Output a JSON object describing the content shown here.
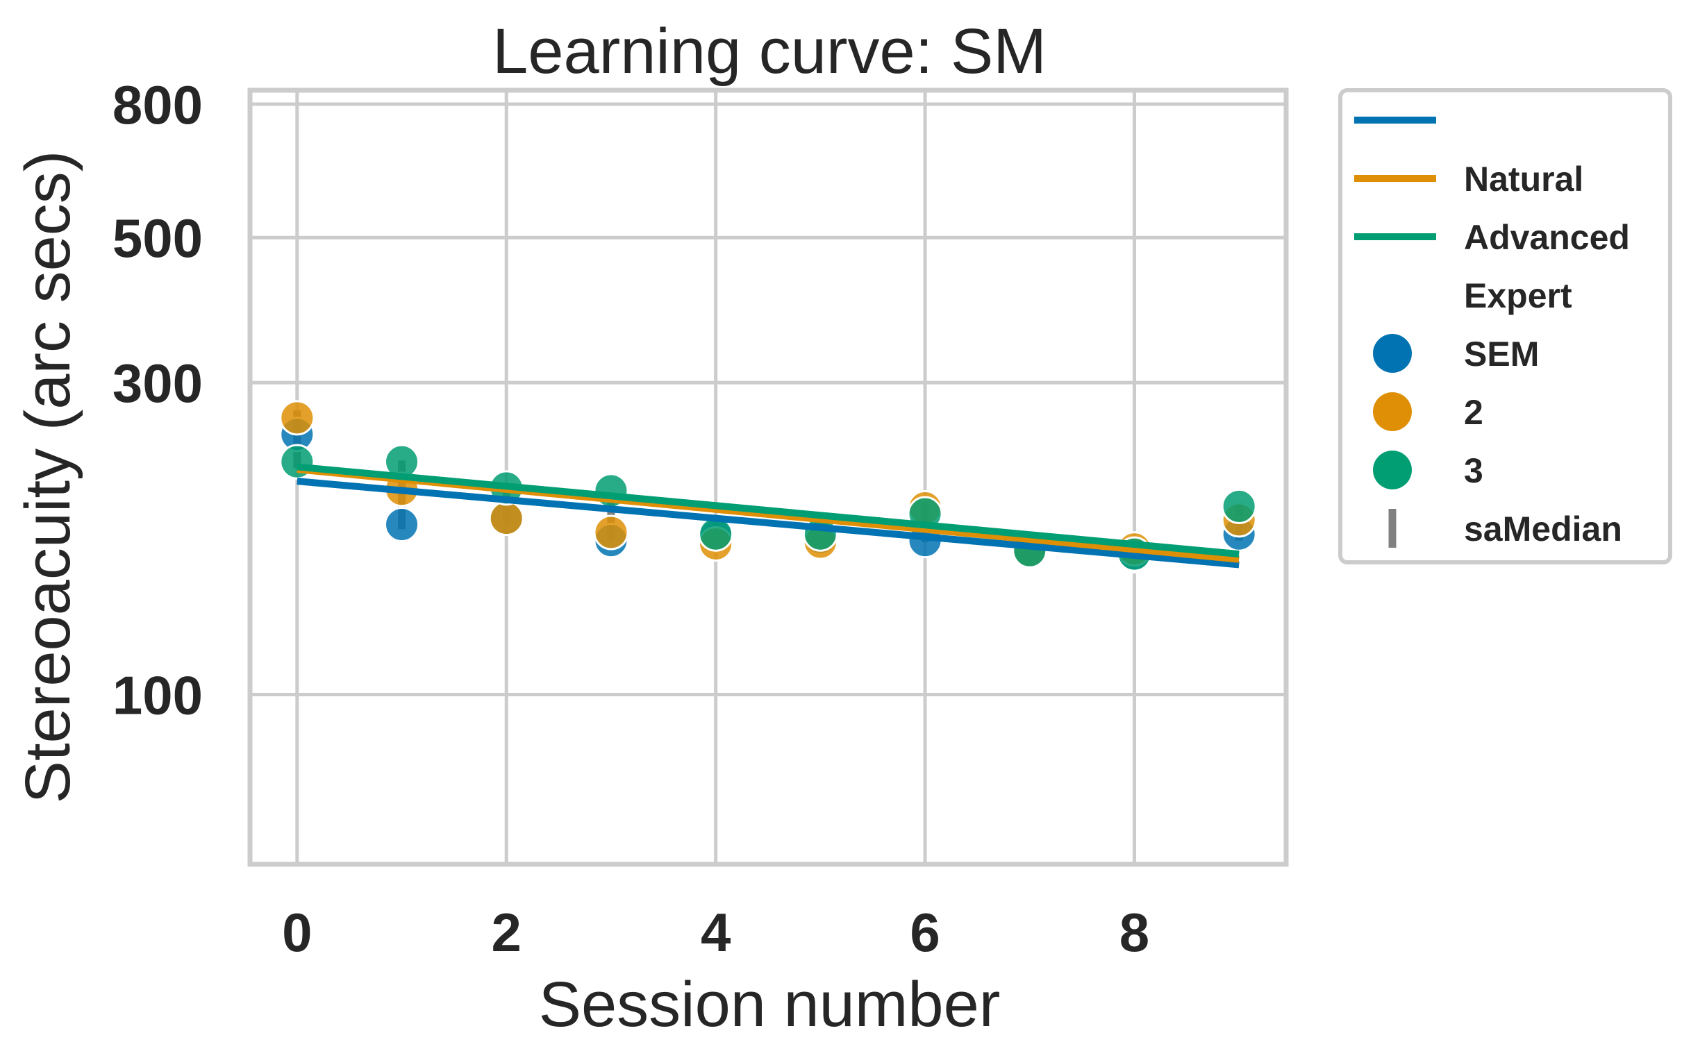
{
  "chart_data": {
    "type": "scatter",
    "title": "Learning curve: SM",
    "xlabel": "Session number",
    "ylabel": "Stereoacuity (arc secs)",
    "x_ticks": [
      0,
      2,
      4,
      6,
      8
    ],
    "y_ticks": [
      100,
      300,
      500,
      800
    ],
    "y_scale": "log",
    "xlim": [
      -0.45,
      9.45
    ],
    "ylim": [
      55,
      840
    ],
    "grid": true,
    "legend_position": "outside-right",
    "colors": {
      "SEM": "#0173b2",
      "2": "#de8f05",
      "3": "#029e73",
      "saMedian": "#808080",
      "grid": "#cccccc",
      "text": "#262626"
    },
    "legend": [
      {
        "kind": "line",
        "label": "",
        "color_key": "SEM"
      },
      {
        "kind": "line",
        "label": "Natural",
        "color_key": "2"
      },
      {
        "kind": "line",
        "label": "Advanced",
        "color_key": "3"
      },
      {
        "kind": "header",
        "label": "Expert"
      },
      {
        "kind": "marker",
        "label": "SEM",
        "color_key": "SEM"
      },
      {
        "kind": "marker",
        "label": "2",
        "color_key": "2"
      },
      {
        "kind": "marker",
        "label": "3",
        "color_key": "3"
      },
      {
        "kind": "median",
        "label": "saMedian",
        "color_key": "saMedian"
      }
    ],
    "series": [
      {
        "key": "SEM",
        "points": [
          {
            "x": 0,
            "y": 250
          },
          {
            "x": 1,
            "y": 182
          },
          {
            "x": 2,
            "y": 186
          },
          {
            "x": 3,
            "y": 172
          },
          {
            "x": 4,
            "y": 175
          },
          {
            "x": 5,
            "y": 174
          },
          {
            "x": 6,
            "y": 172
          },
          {
            "x": 7,
            "y": 165
          },
          {
            "x": 8,
            "y": 163
          },
          {
            "x": 9,
            "y": 176
          }
        ],
        "fit": [
          {
            "x": 0,
            "y": 212
          },
          {
            "x": 9,
            "y": 158
          }
        ]
      },
      {
        "key": "2",
        "points": [
          {
            "x": 0,
            "y": 265
          },
          {
            "x": 1,
            "y": 206
          },
          {
            "x": 2,
            "y": 186
          },
          {
            "x": 3,
            "y": 177
          },
          {
            "x": 4,
            "y": 170
          },
          {
            "x": 5,
            "y": 171
          },
          {
            "x": 6,
            "y": 193
          },
          {
            "x": 7,
            "y": 165
          },
          {
            "x": 8,
            "y": 167
          },
          {
            "x": 9,
            "y": 185
          }
        ],
        "fit": [
          {
            "x": 0,
            "y": 221
          },
          {
            "x": 9,
            "y": 161
          }
        ]
      },
      {
        "key": "3",
        "points": [
          {
            "x": 0,
            "y": 227
          },
          {
            "x": 1,
            "y": 227
          },
          {
            "x": 2,
            "y": 207
          },
          {
            "x": 3,
            "y": 205
          },
          {
            "x": 4,
            "y": 176
          },
          {
            "x": 5,
            "y": 176
          },
          {
            "x": 6,
            "y": 189
          },
          {
            "x": 7,
            "y": 166
          },
          {
            "x": 8,
            "y": 164
          },
          {
            "x": 9,
            "y": 194
          }
        ],
        "fit": [
          {
            "x": 0,
            "y": 223
          },
          {
            "x": 9,
            "y": 164
          }
        ]
      }
    ],
    "medians": [
      {
        "x": 0,
        "y_low": 222,
        "y_high": 272
      },
      {
        "x": 1,
        "y_low": 179,
        "y_high": 228
      },
      {
        "x": 2,
        "y_low": 183,
        "y_high": 206
      },
      {
        "x": 3,
        "y_low": 172,
        "y_high": 200
      },
      {
        "x": 4,
        "y_low": 166,
        "y_high": 188
      },
      {
        "x": 5,
        "y_low": 168,
        "y_high": 180
      },
      {
        "x": 6,
        "y_low": 171,
        "y_high": 197
      },
      {
        "x": 7,
        "y_low": 162,
        "y_high": 170
      },
      {
        "x": 8,
        "y_low": 161,
        "y_high": 168
      },
      {
        "x": 9,
        "y_low": 172,
        "y_high": 197
      }
    ]
  }
}
